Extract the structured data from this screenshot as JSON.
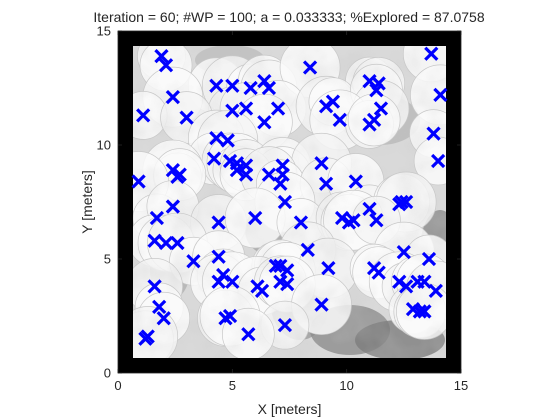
{
  "chart_data": {
    "type": "scatter",
    "title": "Iteration = 60; #WP = 100; a = 0.033333; %Explored = 87.0758",
    "xlabel": "X [meters]",
    "ylabel": "Y [meters]",
    "xlim": [
      0,
      15
    ],
    "ylim": [
      0,
      15
    ],
    "xticks": [
      0,
      5,
      10,
      15
    ],
    "yticks": [
      0,
      5,
      10,
      15
    ],
    "grid": false,
    "background": "grayscale exploration map with black border",
    "marker": "x",
    "marker_color": "#0000ff",
    "series": [
      {
        "points": [
          [
            1.9,
            13.9
          ],
          [
            2.1,
            13.5
          ],
          [
            4.3,
            12.6
          ],
          [
            5.0,
            12.6
          ],
          [
            5.8,
            12.5
          ],
          [
            6.4,
            12.8
          ],
          [
            6.6,
            12.5
          ],
          [
            8.4,
            13.4
          ],
          [
            11.0,
            12.8
          ],
          [
            11.4,
            12.7
          ],
          [
            13.7,
            14.0
          ],
          [
            2.4,
            12.1
          ],
          [
            5.0,
            11.5
          ],
          [
            5.6,
            11.6
          ],
          [
            7.0,
            11.6
          ],
          [
            9.1,
            11.7
          ],
          [
            9.4,
            11.9
          ],
          [
            11.3,
            12.4
          ],
          [
            11.5,
            11.6
          ],
          [
            14.1,
            12.2
          ],
          [
            1.1,
            11.3
          ],
          [
            3.0,
            11.2
          ],
          [
            6.4,
            11.0
          ],
          [
            9.7,
            11.1
          ],
          [
            11.0,
            10.9
          ],
          [
            11.2,
            11.1
          ],
          [
            4.3,
            10.3
          ],
          [
            4.8,
            10.2
          ],
          [
            13.8,
            10.5
          ],
          [
            4.2,
            9.4
          ],
          [
            4.9,
            9.3
          ],
          [
            5.2,
            9.2
          ],
          [
            5.2,
            8.9
          ],
          [
            5.6,
            9.1
          ],
          [
            7.2,
            9.1
          ],
          [
            2.4,
            8.9
          ],
          [
            2.6,
            8.6
          ],
          [
            2.7,
            8.7
          ],
          [
            7.2,
            8.7
          ],
          [
            8.9,
            9.2
          ],
          [
            14.0,
            9.3
          ],
          [
            5.6,
            8.7
          ],
          [
            6.6,
            8.7
          ],
          [
            0.9,
            8.4
          ],
          [
            7.1,
            8.3
          ],
          [
            9.1,
            8.3
          ],
          [
            10.4,
            8.4
          ],
          [
            7.3,
            7.5
          ],
          [
            11.0,
            7.2
          ],
          [
            12.3,
            7.4
          ],
          [
            12.4,
            7.5
          ],
          [
            12.6,
            7.5
          ],
          [
            1.7,
            6.8
          ],
          [
            2.4,
            7.3
          ],
          [
            4.4,
            6.6
          ],
          [
            6.0,
            6.8
          ],
          [
            8.0,
            6.6
          ],
          [
            9.8,
            6.8
          ],
          [
            10.1,
            6.6
          ],
          [
            10.3,
            6.7
          ],
          [
            11.3,
            6.7
          ],
          [
            1.6,
            5.8
          ],
          [
            2.1,
            5.7
          ],
          [
            2.6,
            5.7
          ],
          [
            3.3,
            4.9
          ],
          [
            4.4,
            5.1
          ],
          [
            8.3,
            5.4
          ],
          [
            12.5,
            5.3
          ],
          [
            13.6,
            5.0
          ],
          [
            4.6,
            4.3
          ],
          [
            4.4,
            4.0
          ],
          [
            5.0,
            4.0
          ],
          [
            6.9,
            4.7
          ],
          [
            7.1,
            4.7
          ],
          [
            7.4,
            4.5
          ],
          [
            9.2,
            4.6
          ],
          [
            11.2,
            4.6
          ],
          [
            11.4,
            4.4
          ],
          [
            1.6,
            3.8
          ],
          [
            6.1,
            3.8
          ],
          [
            6.3,
            3.6
          ],
          [
            7.1,
            4.0
          ],
          [
            7.4,
            3.9
          ],
          [
            12.3,
            4.0
          ],
          [
            12.6,
            3.8
          ],
          [
            13.1,
            4.0
          ],
          [
            13.4,
            4.0
          ],
          [
            13.9,
            3.6
          ],
          [
            1.8,
            2.9
          ],
          [
            2.0,
            2.4
          ],
          [
            4.7,
            2.4
          ],
          [
            8.9,
            3.0
          ],
          [
            12.9,
            2.8
          ],
          [
            13.2,
            2.7
          ],
          [
            13.4,
            2.7
          ],
          [
            4.9,
            2.5
          ],
          [
            7.3,
            2.1
          ],
          [
            5.7,
            1.7
          ],
          [
            1.2,
            1.5
          ],
          [
            1.3,
            1.6
          ]
        ]
      }
    ]
  }
}
